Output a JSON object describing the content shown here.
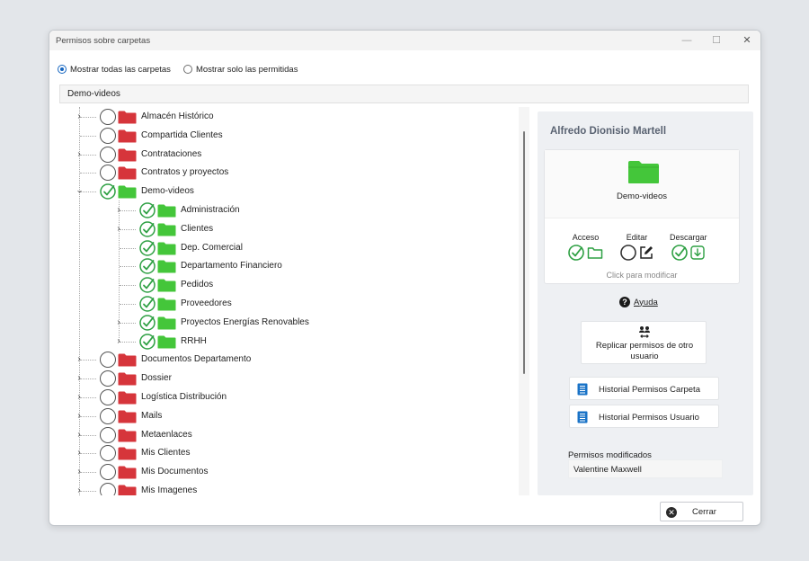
{
  "window": {
    "title": "Permisos sobre carpetas",
    "controls": {
      "minimize": "—",
      "maximize": "☐",
      "close": "✕"
    }
  },
  "filter": {
    "options": [
      {
        "label": "Mostrar todas las carpetas",
        "selected": true
      },
      {
        "label": "Mostrar solo las permitidas",
        "selected": false
      }
    ]
  },
  "path": {
    "value": "Demo-videos"
  },
  "tree": {
    "nodes": [
      {
        "label": "Almacén Histórico",
        "level": 0,
        "expandable": true,
        "expanded": false,
        "permitted": false
      },
      {
        "label": "Compartida Clientes",
        "level": 0,
        "expandable": false,
        "expanded": false,
        "permitted": false
      },
      {
        "label": "Contrataciones",
        "level": 0,
        "expandable": true,
        "expanded": false,
        "permitted": false
      },
      {
        "label": "Contratos y proyectos",
        "level": 0,
        "expandable": false,
        "expanded": false,
        "permitted": false
      },
      {
        "label": "Demo-videos",
        "level": 0,
        "expandable": true,
        "expanded": true,
        "permitted": true
      },
      {
        "label": "Administración",
        "level": 1,
        "expandable": true,
        "expanded": false,
        "permitted": true
      },
      {
        "label": "Clientes",
        "level": 1,
        "expandable": true,
        "expanded": false,
        "permitted": true
      },
      {
        "label": "Dep. Comercial",
        "level": 1,
        "expandable": false,
        "expanded": false,
        "permitted": true
      },
      {
        "label": "Departamento Financiero",
        "level": 1,
        "expandable": false,
        "expanded": false,
        "permitted": true
      },
      {
        "label": "Pedidos",
        "level": 1,
        "expandable": false,
        "expanded": false,
        "permitted": true
      },
      {
        "label": "Proveedores",
        "level": 1,
        "expandable": false,
        "expanded": false,
        "permitted": true
      },
      {
        "label": "Proyectos Energías Renovables",
        "level": 1,
        "expandable": true,
        "expanded": false,
        "permitted": true
      },
      {
        "label": "RRHH",
        "level": 1,
        "expandable": true,
        "expanded": false,
        "permitted": true
      },
      {
        "label": "Documentos Departamento",
        "level": 0,
        "expandable": true,
        "expanded": false,
        "permitted": false
      },
      {
        "label": "Dossier",
        "level": 0,
        "expandable": true,
        "expanded": false,
        "permitted": false
      },
      {
        "label": "Logística Distribución",
        "level": 0,
        "expandable": true,
        "expanded": false,
        "permitted": false
      },
      {
        "label": "Mails",
        "level": 0,
        "expandable": true,
        "expanded": false,
        "permitted": false
      },
      {
        "label": "Metaenlaces",
        "level": 0,
        "expandable": true,
        "expanded": false,
        "permitted": false
      },
      {
        "label": "Mis Clientes",
        "level": 0,
        "expandable": true,
        "expanded": false,
        "permitted": false
      },
      {
        "label": "Mis Documentos",
        "level": 0,
        "expandable": true,
        "expanded": false,
        "permitted": false
      },
      {
        "label": "Mis Imagenes",
        "level": 0,
        "expandable": true,
        "expanded": false,
        "permitted": false
      }
    ]
  },
  "panel": {
    "user_name": "Alfredo Dionisio Martell",
    "folder_name": "Demo-videos",
    "permissions": {
      "access": {
        "label": "Acceso",
        "granted": true
      },
      "edit": {
        "label": "Editar",
        "granted": false
      },
      "download": {
        "label": "Descargar",
        "granted": true
      }
    },
    "click_hint": "Click para modificar",
    "help_label": "Ayuda",
    "replicate_label": "Replicar permisos  de otro usuario",
    "history_folder_label": "Historial Permisos Carpeta",
    "history_user_label": "Historial Permisos Usuario",
    "modified_label": "Permisos modificados",
    "modified_value": "Valentine Maxwell"
  },
  "footer": {
    "close_label": "Cerrar"
  },
  "colors": {
    "permitted_folder": "#44c63a",
    "denied_folder": "#d6353b",
    "check": "#2ea043",
    "accent": "#1565c0",
    "doc_icon": "#1a73c7"
  }
}
